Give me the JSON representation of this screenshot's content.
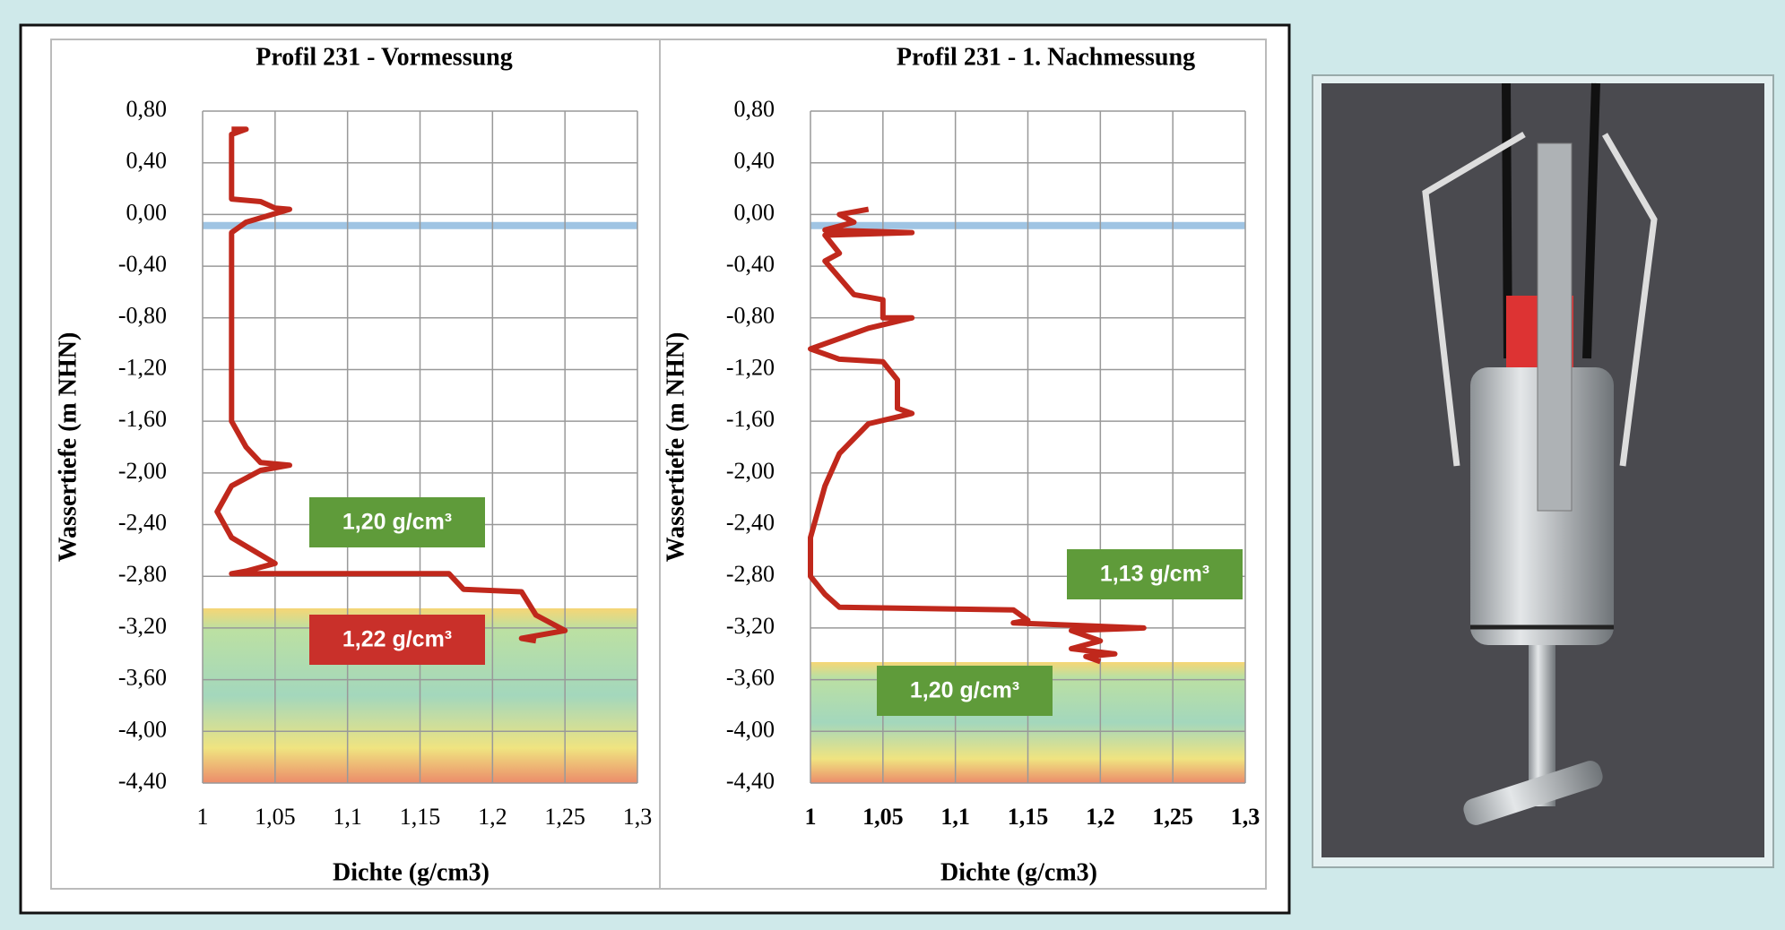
{
  "chart_data": [
    {
      "type": "line",
      "title": "Profil 231 - Vormessung",
      "x_label": "Dichte (g/cm3)",
      "y_label": "Wassertiefe (m NHN)",
      "color": "#c0281c",
      "grid": true,
      "xlim": [
        1,
        1.3
      ],
      "ylim": [
        -4.4,
        0.8
      ],
      "xticks": [
        1,
        {
          "value": 1.05,
          "label": "1,05"
        },
        {
          "value": 1.1,
          "label": "1,1"
        },
        {
          "value": 1.15,
          "label": "1,15"
        },
        {
          "value": 1.2,
          "label": "1,2"
        },
        {
          "value": 1.25,
          "label": "1,25"
        },
        {
          "value": 1.3,
          "label": "1,3"
        }
      ],
      "yticks": [
        {
          "value": 0.8,
          "label": "0,80"
        },
        {
          "value": 0.4,
          "label": "0,40"
        },
        {
          "value": 0,
          "label": "0,00"
        },
        {
          "value": -0.4,
          "label": "-0,40"
        },
        {
          "value": -0.8,
          "label": "-0,80"
        },
        {
          "value": -1.2,
          "label": "-1,20"
        },
        {
          "value": -1.6,
          "label": "-1,60"
        },
        {
          "value": -2,
          "label": "-2,00"
        },
        {
          "value": -2.4,
          "label": "-2,40"
        },
        {
          "value": -2.8,
          "label": "-2,80"
        },
        {
          "value": -3.2,
          "label": "-3,20"
        },
        {
          "value": -3.6,
          "label": "-3,60"
        },
        {
          "value": -4,
          "label": "-4,00"
        },
        {
          "value": -4.4,
          "label": "-4,40"
        }
      ],
      "x": [
        1.02,
        1.03,
        1.02,
        1.02,
        1.04,
        1.05,
        1.06,
        1.03,
        1.02,
        1.02,
        1.02,
        1.03,
        1.04,
        1.06,
        1.04,
        1.02,
        1.01,
        1.02,
        1.05,
        1.03,
        1.02,
        1.17,
        1.18,
        1.22,
        1.23,
        1.25,
        1.22,
        1.23
      ],
      "values": [
        0.66,
        0.66,
        0.62,
        0.12,
        0.1,
        0.05,
        0.04,
        -0.06,
        -0.14,
        -0.3,
        -1.6,
        -1.8,
        -1.92,
        -1.94,
        -1.98,
        -2.1,
        -2.3,
        -2.5,
        -2.7,
        -2.76,
        -2.78,
        -2.78,
        -2.9,
        -2.92,
        -3.1,
        -3.22,
        -3.28,
        -3.3
      ],
      "annotations": [
        {
          "text": "1,20 g/cm³",
          "color": "#5f9b3a"
        },
        {
          "text": "1,22 g/cm³",
          "color": "#c9302a"
        }
      ]
    },
    {
      "type": "line",
      "title": "Profil 231 - 1. Nachmessung",
      "x_label": "Dichte (g/cm3)",
      "y_label": "Wassertiefe (m NHN)",
      "color": "#c0281c",
      "grid": true,
      "xlim": [
        1,
        1.3
      ],
      "ylim": [
        -4.4,
        0.8
      ],
      "xticks": [
        1,
        {
          "value": 1.05,
          "label": "1,05"
        },
        {
          "value": 1.1,
          "label": "1,1"
        },
        {
          "value": 1.15,
          "label": "1,15"
        },
        {
          "value": 1.2,
          "label": "1,2"
        },
        {
          "value": 1.25,
          "label": "1,25"
        },
        {
          "value": 1.3,
          "label": "1,3"
        }
      ],
      "yticks": [
        {
          "value": 0.8,
          "label": "0,80"
        },
        {
          "value": 0.4,
          "label": "0,40"
        },
        {
          "value": 0,
          "label": "0,00"
        },
        {
          "value": -0.4,
          "label": "-0,40"
        },
        {
          "value": -0.8,
          "label": "-0,80"
        },
        {
          "value": -1.2,
          "label": "-1,20"
        },
        {
          "value": -1.6,
          "label": "-1,60"
        },
        {
          "value": -2,
          "label": "-2,00"
        },
        {
          "value": -2.4,
          "label": "-2,40"
        },
        {
          "value": -2.8,
          "label": "-2,80"
        },
        {
          "value": -3.2,
          "label": "-3,20"
        },
        {
          "value": -3.6,
          "label": "-3,60"
        },
        {
          "value": -4,
          "label": "-4,00"
        },
        {
          "value": -4.4,
          "label": "-4,40"
        }
      ],
      "x": [
        1.04,
        1.02,
        1.03,
        1.01,
        1.07,
        1.01,
        1.02,
        1.01,
        1.03,
        1.05,
        1.05,
        1.07,
        1.04,
        1,
        1.02,
        1.05,
        1.06,
        1.06,
        1.07,
        1.04,
        1.02,
        1.01,
        1,
        1,
        1.01,
        1.02,
        1.14,
        1.15,
        1.14,
        1.23,
        1.18,
        1.2,
        1.18,
        1.21,
        1.19,
        1.2
      ],
      "values": [
        0.04,
        0,
        -0.06,
        -0.12,
        -0.14,
        -0.16,
        -0.3,
        -0.36,
        -0.62,
        -0.66,
        -0.8,
        -0.8,
        -0.88,
        -1.04,
        -1.12,
        -1.14,
        -1.28,
        -1.5,
        -1.54,
        -1.62,
        -1.85,
        -2.1,
        -2.5,
        -2.8,
        -2.94,
        -3.04,
        -3.06,
        -3.14,
        -3.16,
        -3.2,
        -3.22,
        -3.3,
        -3.36,
        -3.4,
        -3.42,
        -3.46
      ],
      "annotations": [
        {
          "text": "1,13 g/cm³",
          "color": "#5f9b3a"
        },
        {
          "text": "1,20 g/cm³",
          "color": "#5f9b3a"
        }
      ]
    }
  ]
}
